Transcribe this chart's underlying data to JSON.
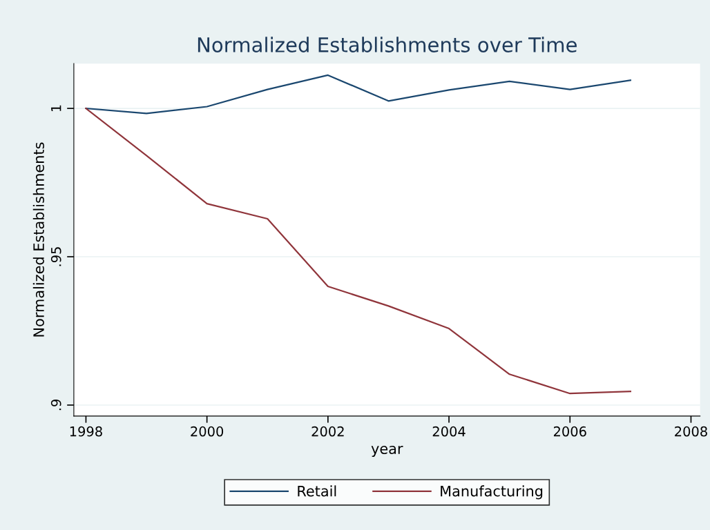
{
  "chart_data": {
    "type": "line",
    "title": "Normalized Establishments over Time",
    "xlabel": "year",
    "ylabel": "Normalized Establishments",
    "x": [
      1998,
      1999,
      2000,
      2001,
      2002,
      2003,
      2004,
      2005,
      2006,
      2007
    ],
    "series": [
      {
        "name": "Retail",
        "color": "#1a476f",
        "values": [
          1.0,
          0.9983,
          1.0006,
          1.0064,
          1.0112,
          1.0025,
          1.0062,
          1.0091,
          1.0064,
          1.0095
        ]
      },
      {
        "name": "Manufacturing",
        "color": "#90353b",
        "values": [
          1.0,
          0.9841,
          0.9679,
          0.9628,
          0.94,
          0.9334,
          0.9258,
          0.9104,
          0.9039,
          0.9046
        ]
      }
    ],
    "xlim": [
      1997.8,
      2008.15
    ],
    "xticks": [
      1998,
      2000,
      2002,
      2004,
      2006,
      2008
    ],
    "ylim": [
      0.8963,
      1.0151
    ],
    "yticks": [
      {
        "value": 0.9,
        "label": ".9"
      },
      {
        "value": 0.95,
        "label": ".95"
      },
      {
        "value": 1,
        "label": "1"
      }
    ],
    "grid": "y",
    "legend": "bottom",
    "marker": "none",
    "line_style": "solid"
  }
}
